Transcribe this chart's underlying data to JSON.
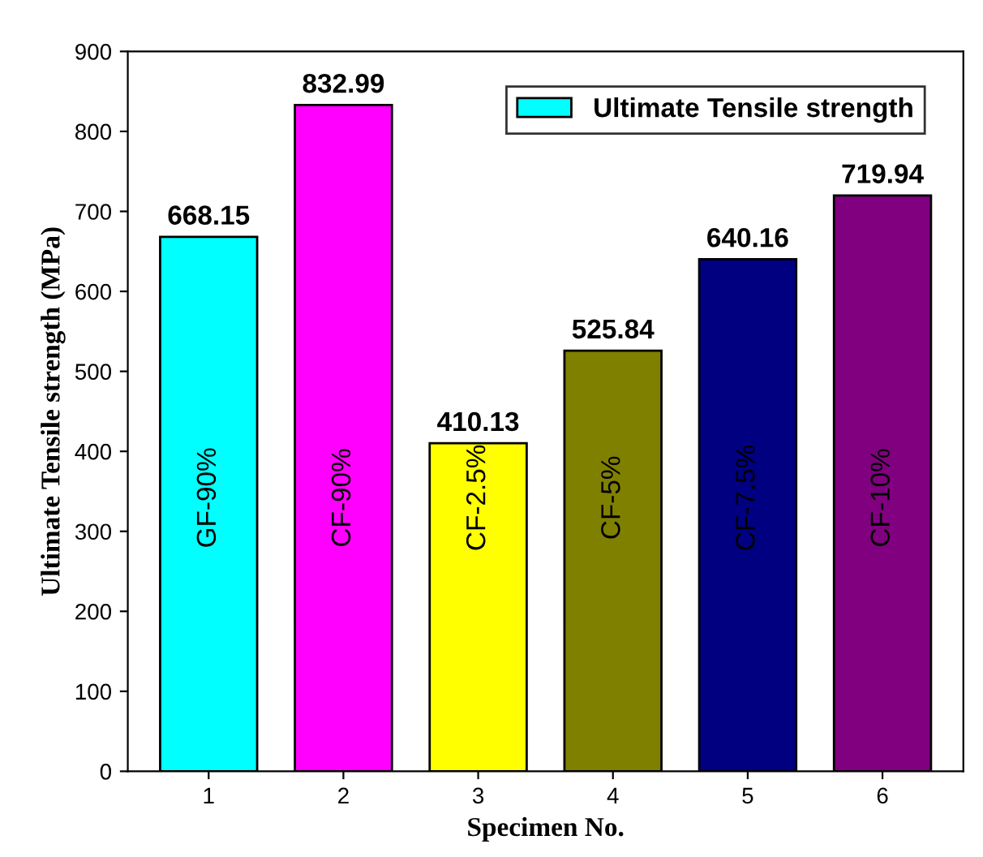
{
  "chart_data": {
    "type": "bar",
    "xlabel": "Specimen No.",
    "ylabel": "Ultimate Tensile strength (MPa)",
    "categories": [
      "1",
      "2",
      "3",
      "4",
      "5",
      "6"
    ],
    "series": [
      {
        "name": "Ultimate Tensile strength",
        "color": "#00ffff",
        "colors": [
          "#00ffff",
          "#ff00ff",
          "#ffff00",
          "#808000",
          "#000080",
          "#800080"
        ],
        "values": [
          668.15,
          832.99,
          410.13,
          525.84,
          640.16,
          719.94
        ]
      }
    ],
    "data_labels": true,
    "ylim": [
      0,
      900
    ],
    "yticks": [
      0,
      100,
      200,
      300,
      400,
      500,
      600,
      700,
      800,
      900
    ],
    "grid": false,
    "legend": "top right",
    "annotations": [
      "GF-90%",
      "CF-90%",
      "CF-2.5%",
      "CF-5%",
      "CF-7.5%",
      "CF-10%"
    ]
  }
}
